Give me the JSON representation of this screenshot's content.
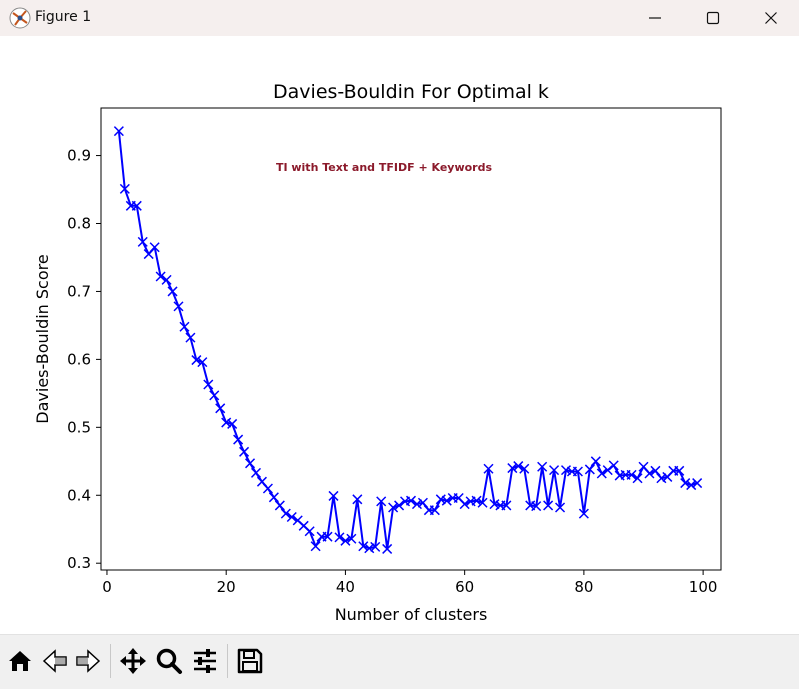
{
  "window": {
    "title": "Figure 1",
    "controls": [
      "minimize-icon",
      "maximize-icon",
      "close-icon"
    ]
  },
  "toolbar": {
    "buttons": [
      "home-icon",
      "back-icon",
      "forward-icon",
      "pan-icon",
      "zoom-icon",
      "configure-icon",
      "save-icon"
    ]
  },
  "chart_data": {
    "type": "line",
    "title": "Davies-Bouldin For Optimal k",
    "xlabel": "Number of clusters",
    "ylabel": "Davies-Bouldin Score",
    "annotation": "TI with Text and TFIDF + Keywords",
    "annotation_color": "#8b1a2b",
    "line_color": "#0000ff",
    "marker": "x",
    "xlim": [
      -1,
      103
    ],
    "ylim": [
      0.29,
      0.97
    ],
    "xticks": [
      "0",
      "20",
      "40",
      "60",
      "80",
      "100"
    ],
    "yticks": [
      "0.3",
      "0.4",
      "0.5",
      "0.6",
      "0.7",
      "0.8",
      "0.9"
    ],
    "x": [
      2,
      3,
      4,
      5,
      6,
      7,
      8,
      9,
      10,
      11,
      12,
      13,
      14,
      15,
      16,
      17,
      18,
      19,
      20,
      21,
      22,
      23,
      24,
      25,
      26,
      27,
      28,
      29,
      30,
      31,
      32,
      33,
      34,
      35,
      36,
      37,
      38,
      39,
      40,
      41,
      42,
      43,
      44,
      45,
      46,
      47,
      48,
      49,
      50,
      51,
      52,
      53,
      54,
      55,
      56,
      57,
      58,
      59,
      60,
      61,
      62,
      63,
      64,
      65,
      66,
      67,
      68,
      69,
      70,
      71,
      72,
      73,
      74,
      75,
      76,
      77,
      78,
      79,
      80,
      81,
      82,
      83,
      84,
      85,
      86,
      87,
      88,
      89,
      90,
      91,
      92,
      93,
      94,
      95,
      96,
      97,
      98,
      99
    ],
    "y": [
      0.936,
      0.851,
      0.826,
      0.826,
      0.773,
      0.755,
      0.765,
      0.722,
      0.717,
      0.7,
      0.678,
      0.648,
      0.632,
      0.599,
      0.596,
      0.563,
      0.547,
      0.528,
      0.507,
      0.505,
      0.482,
      0.464,
      0.447,
      0.433,
      0.42,
      0.41,
      0.397,
      0.385,
      0.373,
      0.368,
      0.363,
      0.355,
      0.347,
      0.325,
      0.339,
      0.339,
      0.399,
      0.338,
      0.333,
      0.336,
      0.394,
      0.325,
      0.322,
      0.324,
      0.391,
      0.321,
      0.382,
      0.385,
      0.391,
      0.392,
      0.387,
      0.389,
      0.378,
      0.378,
      0.394,
      0.392,
      0.396,
      0.396,
      0.387,
      0.391,
      0.392,
      0.389,
      0.439,
      0.387,
      0.385,
      0.385,
      0.44,
      0.443,
      0.439,
      0.385,
      0.384,
      0.442,
      0.385,
      0.437,
      0.382,
      0.437,
      0.435,
      0.435,
      0.373,
      0.438,
      0.45,
      0.432,
      0.437,
      0.444,
      0.429,
      0.43,
      0.43,
      0.425,
      0.442,
      0.432,
      0.436,
      0.425,
      0.427,
      0.436,
      0.436,
      0.418,
      0.415,
      0.418
    ]
  }
}
